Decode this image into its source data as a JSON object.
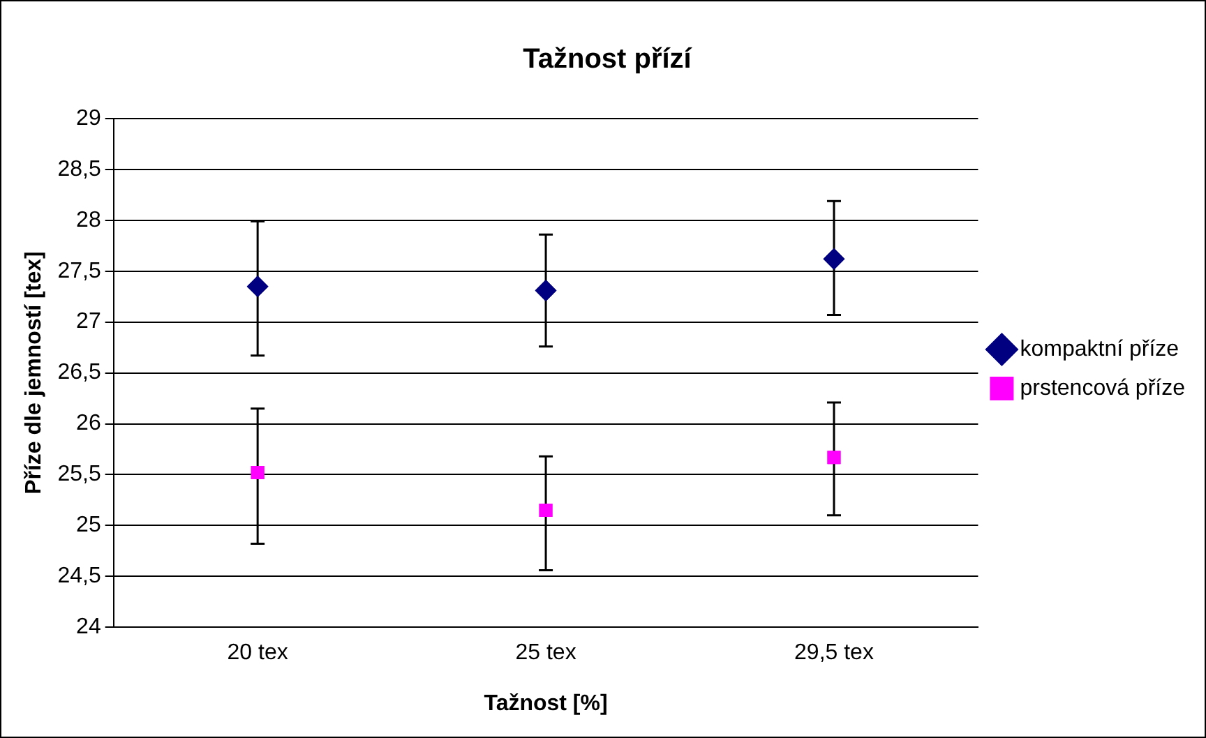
{
  "chart_data": {
    "type": "scatter",
    "title": "Tažnost přízí",
    "xlabel": "Tažnost [%]",
    "ylabel": "Příze dle jemností [tex]",
    "categories": [
      "20 tex",
      "25 tex",
      "29,5 tex"
    ],
    "series": [
      {
        "name": "kompaktní příze",
        "color": "#000080",
        "marker": "diamond",
        "values": [
          27.35,
          27.31,
          27.62
        ],
        "errors": [
          [
            26.67,
            27.99
          ],
          [
            26.76,
            27.86
          ],
          [
            27.07,
            28.19
          ]
        ]
      },
      {
        "name": "prstencová příze",
        "color": "#ff00ff",
        "marker": "square",
        "values": [
          25.52,
          25.15,
          25.67
        ],
        "errors": [
          [
            24.82,
            26.15
          ],
          [
            24.56,
            25.68
          ],
          [
            25.1,
            26.21
          ]
        ]
      }
    ],
    "ylim": [
      24,
      29
    ],
    "yticks": [
      {
        "value": 24,
        "label": "24"
      },
      {
        "value": 24.5,
        "label": "24,5"
      },
      {
        "value": 25,
        "label": "25"
      },
      {
        "value": 25.5,
        "label": "25,5"
      },
      {
        "value": 26,
        "label": "26"
      },
      {
        "value": 26.5,
        "label": "26,5"
      },
      {
        "value": 27,
        "label": "27"
      },
      {
        "value": 27.5,
        "label": "27,5"
      },
      {
        "value": 28,
        "label": "28"
      },
      {
        "value": 28.5,
        "label": "28,5"
      },
      {
        "value": 29,
        "label": "29"
      }
    ],
    "grid": "y",
    "legend": "right"
  }
}
